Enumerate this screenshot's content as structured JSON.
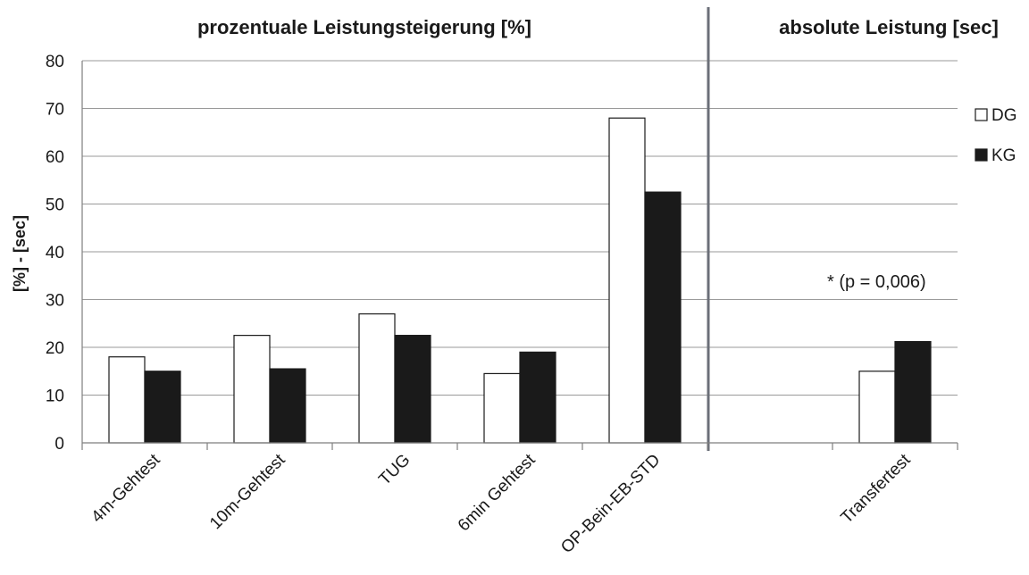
{
  "chart_data": {
    "type": "bar",
    "section_titles": [
      "prozentuale Leistungsteigerung [%]",
      "absolute Leistung [sec]"
    ],
    "ylabel": "[%] - [sec]",
    "ylim": [
      0,
      80
    ],
    "yticks": [
      0,
      10,
      20,
      30,
      40,
      50,
      60,
      70,
      80
    ],
    "grid": true,
    "legend_position": "right",
    "categories": [
      "4m-Gehtest",
      "10m-Gehtest",
      "TUG",
      "6min Gehtest",
      "OP-Bein-EB-STD",
      "",
      "Transfertest"
    ],
    "series": [
      {
        "name": "DG",
        "color": "#ffffff",
        "values": [
          18,
          22.5,
          27,
          14.5,
          68,
          null,
          15
        ]
      },
      {
        "name": "KG",
        "color": "#1a1a1a",
        "values": [
          15,
          15.5,
          22.5,
          19,
          52.5,
          null,
          21.2
        ]
      }
    ],
    "annotation": "* (p = 0,006)"
  }
}
